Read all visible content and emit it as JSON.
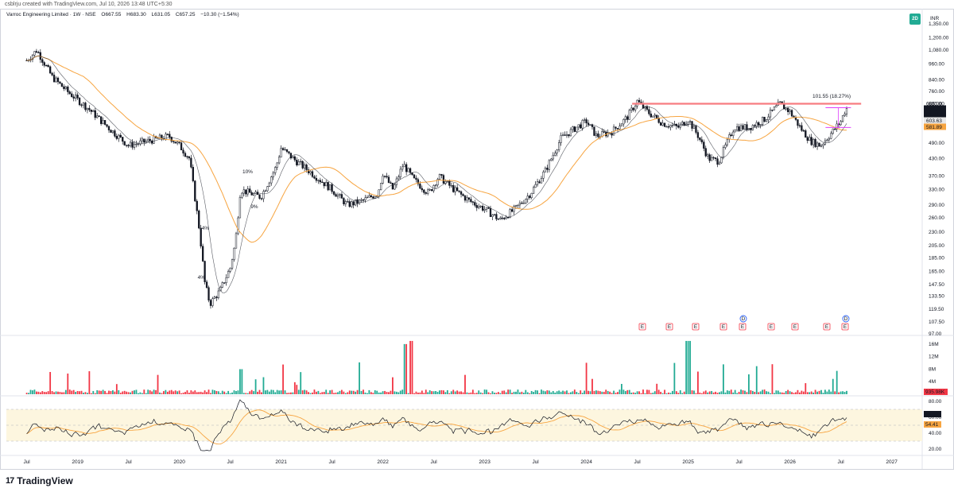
{
  "header": {
    "created_note": "csblrju created with TradingView.com, Jul 10, 2026 13:48 UTC+5:30",
    "legend": {
      "title": "Varroc Engineering Limited · 1W · NSE",
      "open": "O667.55",
      "high": "H683.30",
      "low": "L631.05",
      "close": "C657.25",
      "change": "−10.30 (−1.54%)"
    },
    "mode_button": "2D",
    "currency": "INR"
  },
  "footer": {
    "logo_text": "TradingView"
  },
  "chart_data": [
    {
      "type": "candlestick",
      "title": "Varroc Engineering Limited · 1W · NSE",
      "price_scale": "log",
      "y_ticks": [
        "1,350.00",
        "1,200.00",
        "1,080.00",
        "960.00",
        "840.00",
        "760.00",
        "685.00",
        "620.00",
        "490.00",
        "430.00",
        "370.00",
        "330.00",
        "290.00",
        "260.00",
        "230.00",
        "205.00",
        "185.00",
        "165.00",
        "147.50",
        "133.50",
        "119.50",
        "107.50",
        "97.00"
      ],
      "x_ticks": [
        "Jul",
        "2019",
        "Jul",
        "2020",
        "Jul",
        "2021",
        "Jul",
        "2022",
        "Jul",
        "2023",
        "Jul",
        "2024",
        "Jul",
        "2025",
        "Jul",
        "2026",
        "Jul",
        "2027"
      ],
      "price_path_points": [
        [
          2018.5,
          990
        ],
        [
          2018.6,
          1080
        ],
        [
          2018.75,
          860
        ],
        [
          2018.9,
          760
        ],
        [
          2019.1,
          660
        ],
        [
          2019.3,
          560
        ],
        [
          2019.5,
          480
        ],
        [
          2019.7,
          500
        ],
        [
          2019.9,
          520
        ],
        [
          2020.0,
          480
        ],
        [
          2020.1,
          430
        ],
        [
          2020.2,
          230
        ],
        [
          2020.25,
          150
        ],
        [
          2020.3,
          125
        ],
        [
          2020.4,
          140
        ],
        [
          2020.5,
          170
        ],
        [
          2020.55,
          210
        ],
        [
          2020.6,
          330
        ],
        [
          2020.7,
          320
        ],
        [
          2020.8,
          310
        ],
        [
          2020.95,
          400
        ],
        [
          2021.0,
          470
        ],
        [
          2021.15,
          420
        ],
        [
          2021.3,
          380
        ],
        [
          2021.5,
          330
        ],
        [
          2021.65,
          290
        ],
        [
          2021.8,
          300
        ],
        [
          2021.95,
          320
        ],
        [
          2022.0,
          380
        ],
        [
          2022.1,
          330
        ],
        [
          2022.2,
          410
        ],
        [
          2022.3,
          360
        ],
        [
          2022.45,
          320
        ],
        [
          2022.55,
          370
        ],
        [
          2022.7,
          330
        ],
        [
          2022.85,
          300
        ],
        [
          2023.0,
          280
        ],
        [
          2023.15,
          255
        ],
        [
          2023.3,
          280
        ],
        [
          2023.45,
          320
        ],
        [
          2023.6,
          390
        ],
        [
          2023.75,
          510
        ],
        [
          2023.9,
          560
        ],
        [
          2024.0,
          590
        ],
        [
          2024.1,
          520
        ],
        [
          2024.25,
          540
        ],
        [
          2024.4,
          610
        ],
        [
          2024.5,
          700
        ],
        [
          2024.6,
          640
        ],
        [
          2024.75,
          580
        ],
        [
          2024.9,
          560
        ],
        [
          2025.0,
          600
        ],
        [
          2025.1,
          520
        ],
        [
          2025.2,
          430
        ],
        [
          2025.3,
          420
        ],
        [
          2025.45,
          560
        ],
        [
          2025.6,
          560
        ],
        [
          2025.75,
          600
        ],
        [
          2025.9,
          685
        ],
        [
          2026.0,
          640
        ],
        [
          2026.1,
          560
        ],
        [
          2026.2,
          500
        ],
        [
          2026.3,
          480
        ],
        [
          2026.4,
          530
        ],
        [
          2026.5,
          590
        ],
        [
          2026.55,
          657
        ]
      ],
      "sma_fast_label": "",
      "sma_slow_label": "",
      "resistance_line": 685.0,
      "measure_label": "101.55 (18.27%)",
      "price_labels": [
        {
          "value": "685.00",
          "color": "#ffffff"
        },
        {
          "value": "657.25",
          "color": "#ffffff"
        },
        {
          "value": "01:41:36",
          "color": "#ffffff"
        },
        {
          "value": "603.63",
          "color": "#131722"
        },
        {
          "value": "581.89",
          "color": "#f7a541"
        }
      ],
      "pivot_labels": [
        "10%",
        "4%",
        "4%",
        "9%"
      ],
      "event_markers": [
        "E",
        "E",
        "E",
        "E",
        "E",
        "E",
        "E",
        "E",
        "E",
        "D",
        "D"
      ]
    },
    {
      "type": "bar",
      "title": "Volume",
      "y_ticks": [
        "16M",
        "12M",
        "8M",
        "4M"
      ],
      "last_value_label": "935.98K"
    },
    {
      "type": "line",
      "title": "RSI",
      "y_ticks": [
        "80.00",
        "60.00",
        "40.00",
        "20.00"
      ],
      "overbought": 70,
      "oversold": 30,
      "last_value_label": "66.52",
      "signal_value_label": "54.41"
    }
  ],
  "colors": {
    "up": "#22ab94",
    "down": "#f23645",
    "sma_slow": "#f7a541",
    "sma_fast": "#131722",
    "resistance": "#f77c80",
    "measure": "#e040fb",
    "rsi_band": "#fdf6df",
    "event_badge": "#f23645",
    "dividend_badge": "#2962ff"
  }
}
